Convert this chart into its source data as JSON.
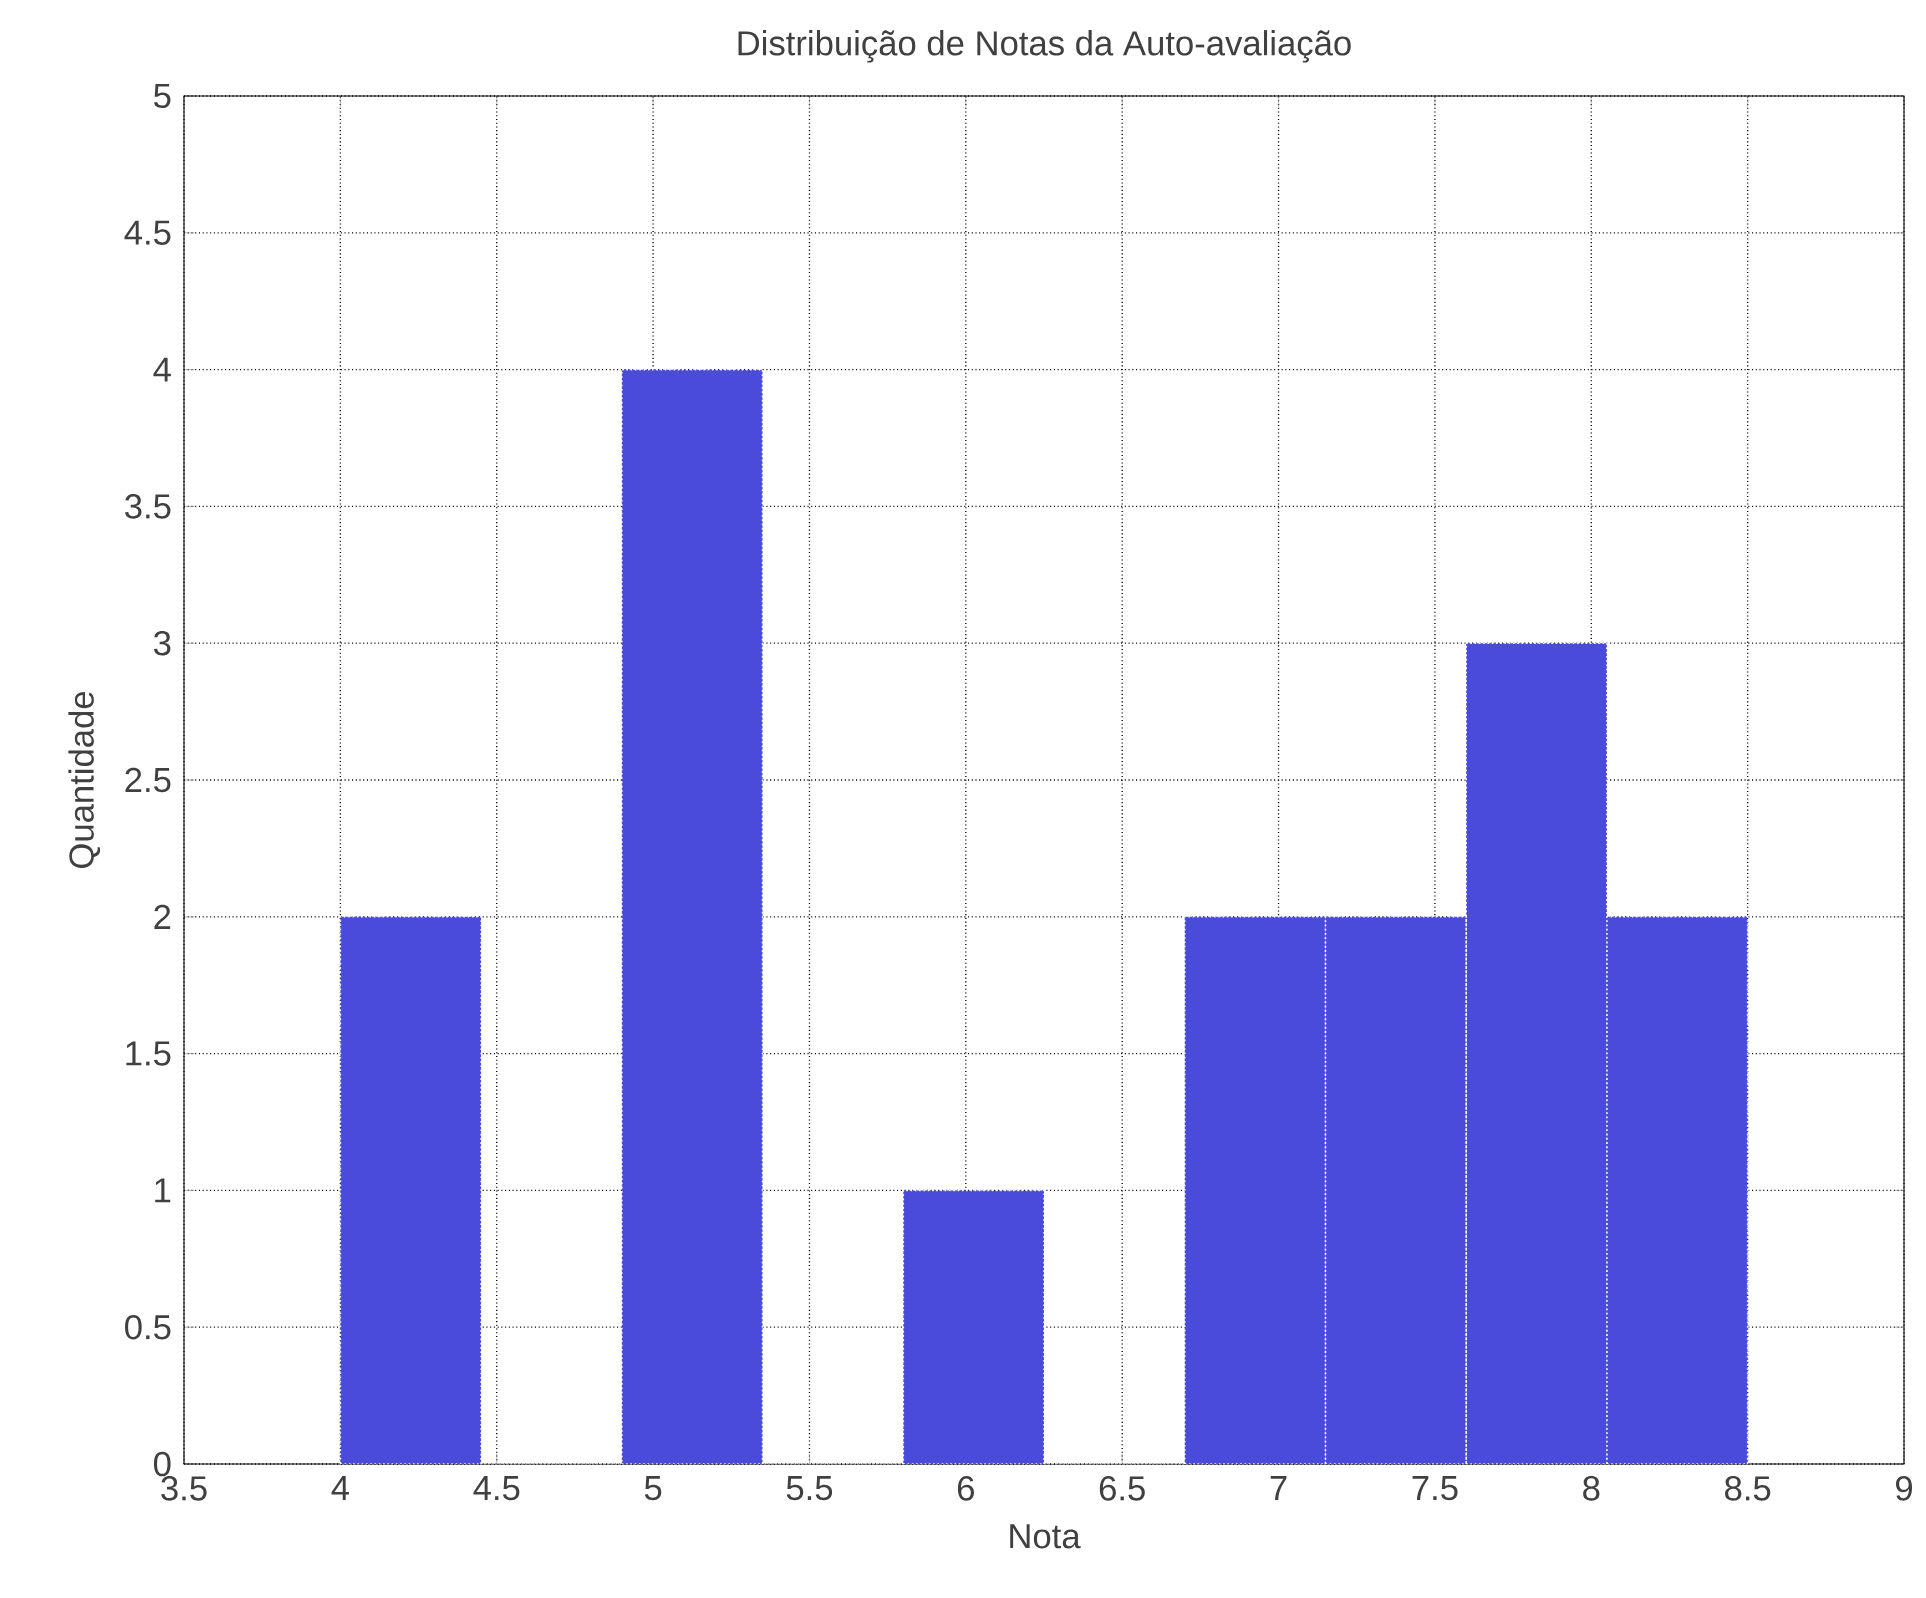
{
  "chart_data": {
    "type": "histogram",
    "title": "Distribuição de Notas da Auto-avaliação",
    "xlabel": "Nota",
    "ylabel": "Quantidade",
    "bins": [
      4,
      4.45,
      4.9,
      5.35,
      5.8,
      6.25,
      6.7,
      7.15,
      7.6,
      8.05,
      8.5
    ],
    "values": [
      2,
      0,
      4,
      0,
      1,
      0,
      2,
      2,
      3,
      2
    ],
    "color": "#4a4adb",
    "xlim": [
      3.5,
      9
    ],
    "xticks": [
      3.5,
      4,
      4.5,
      5,
      5.5,
      6,
      6.5,
      7,
      7.5,
      8,
      8.5,
      9
    ],
    "ylim": [
      0,
      5
    ],
    "yticks": [
      0,
      0.5,
      1,
      1.5,
      2,
      2.5,
      3,
      3.5,
      4,
      4.5,
      5
    ],
    "grid": true
  }
}
